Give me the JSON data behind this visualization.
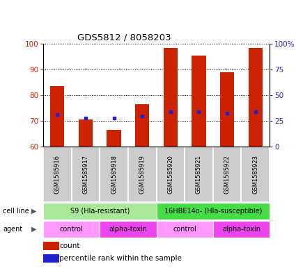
{
  "title": "GDS5812 / 8058203",
  "samples": [
    "GSM1585916",
    "GSM1585917",
    "GSM1585918",
    "GSM1585919",
    "GSM1585920",
    "GSM1585921",
    "GSM1585922",
    "GSM1585923"
  ],
  "bar_heights": [
    83.5,
    70.5,
    66.5,
    76.5,
    98.5,
    95.5,
    89.0,
    98.5
  ],
  "bar_bottom": 60,
  "blue_marker_y": [
    72.5,
    71.0,
    71.0,
    72.0,
    73.5,
    73.5,
    73.0,
    73.5
  ],
  "ylim": [
    60,
    100
  ],
  "y2lim": [
    0,
    100
  ],
  "yticks_left": [
    60,
    70,
    80,
    90,
    100
  ],
  "ytick_labels_right": [
    "0",
    "25",
    "50",
    "75",
    "100%"
  ],
  "yticks_right": [
    0,
    25,
    50,
    75,
    100
  ],
  "bar_color": "#cc2200",
  "blue_color": "#2222cc",
  "cell_line_groups": [
    {
      "label": "S9 (Hla-resistant)",
      "start": 0,
      "end": 3,
      "color": "#aae899"
    },
    {
      "label": "16HBE14o- (Hla-susceptible)",
      "start": 4,
      "end": 7,
      "color": "#44dd44"
    }
  ],
  "agent_groups": [
    {
      "label": "control",
      "start": 0,
      "end": 1,
      "color": "#ff99ff"
    },
    {
      "label": "alpha-toxin",
      "start": 2,
      "end": 3,
      "color": "#ee44ee"
    },
    {
      "label": "control",
      "start": 4,
      "end": 5,
      "color": "#ff99ff"
    },
    {
      "label": "alpha-toxin",
      "start": 6,
      "end": 7,
      "color": "#ee44ee"
    }
  ],
  "legend_items": [
    {
      "color": "#cc2200",
      "label": "count"
    },
    {
      "color": "#2222cc",
      "label": "percentile rank within the sample"
    }
  ],
  "bar_width": 0.5
}
